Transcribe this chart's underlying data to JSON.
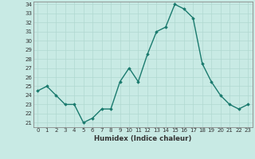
{
  "x": [
    0,
    1,
    2,
    3,
    4,
    5,
    6,
    7,
    8,
    9,
    10,
    11,
    12,
    13,
    14,
    15,
    16,
    17,
    18,
    19,
    20,
    21,
    22,
    23
  ],
  "y": [
    24.5,
    25.0,
    24.0,
    23.0,
    23.0,
    21.0,
    21.5,
    22.5,
    22.5,
    25.5,
    27.0,
    25.5,
    28.5,
    31.0,
    31.5,
    34.0,
    33.5,
    32.5,
    27.5,
    25.5,
    24.0,
    23.0,
    22.5,
    23.0
  ],
  "xlim": [
    -0.5,
    23.5
  ],
  "ylim_min": 20.5,
  "ylim_max": 34.3,
  "yticks": [
    21,
    22,
    23,
    24,
    25,
    26,
    27,
    28,
    29,
    30,
    31,
    32,
    33,
    34
  ],
  "xticks": [
    0,
    1,
    2,
    3,
    4,
    5,
    6,
    7,
    8,
    9,
    10,
    11,
    12,
    13,
    14,
    15,
    16,
    17,
    18,
    19,
    20,
    21,
    22,
    23
  ],
  "xlabel": "Humidex (Indice chaleur)",
  "line_color": "#1a7a6e",
  "marker": "D",
  "marker_size": 1.8,
  "line_width": 1.0,
  "background_color": "#c8eae4",
  "grid_color": "#b0d8d0",
  "tick_fontsize": 5.0,
  "xlabel_fontsize": 6.2
}
